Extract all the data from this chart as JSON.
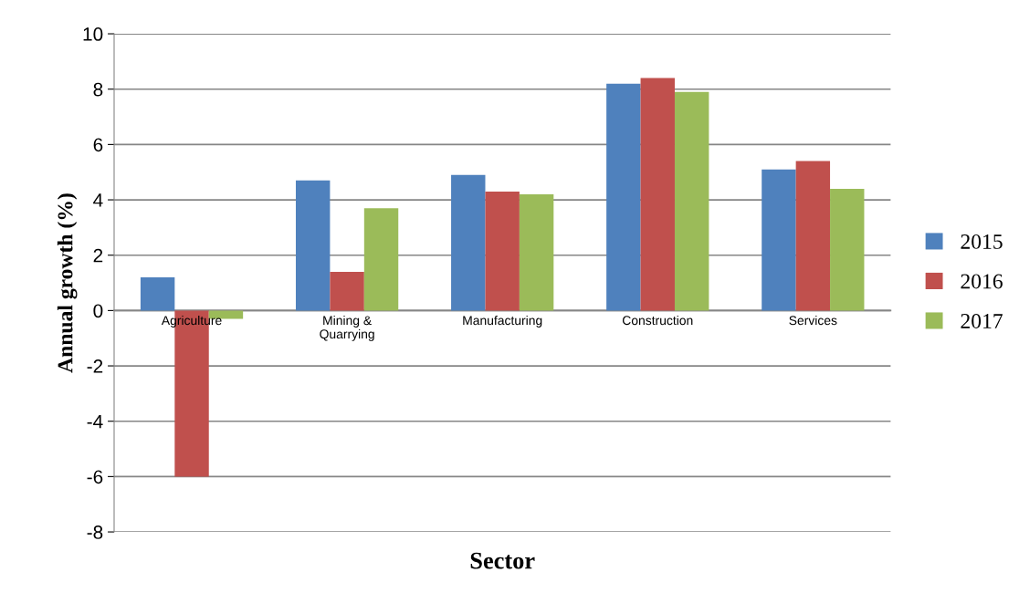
{
  "chart_data": {
    "type": "bar",
    "xlabel": "Sector",
    "ylabel": "Annual growth (%)",
    "categories": [
      "Agriculture",
      "Mining &\nQuarrying",
      "Manufacturing",
      "Construction",
      "Services"
    ],
    "series": [
      {
        "name": "2015",
        "color": "#4f81bd",
        "values": [
          1.2,
          4.7,
          4.9,
          8.2,
          5.1
        ]
      },
      {
        "name": "2016",
        "color": "#c0504d",
        "values": [
          -6.0,
          1.4,
          4.3,
          8.4,
          5.4
        ]
      },
      {
        "name": "2017",
        "color": "#9bbb59",
        "values": [
          -0.3,
          3.7,
          4.2,
          7.9,
          4.4
        ]
      }
    ],
    "ylim": [
      -8,
      10
    ],
    "yticks": [
      -8,
      -6,
      -4,
      -2,
      0,
      2,
      4,
      6,
      8,
      10
    ],
    "grid": "y",
    "legend": "right"
  }
}
